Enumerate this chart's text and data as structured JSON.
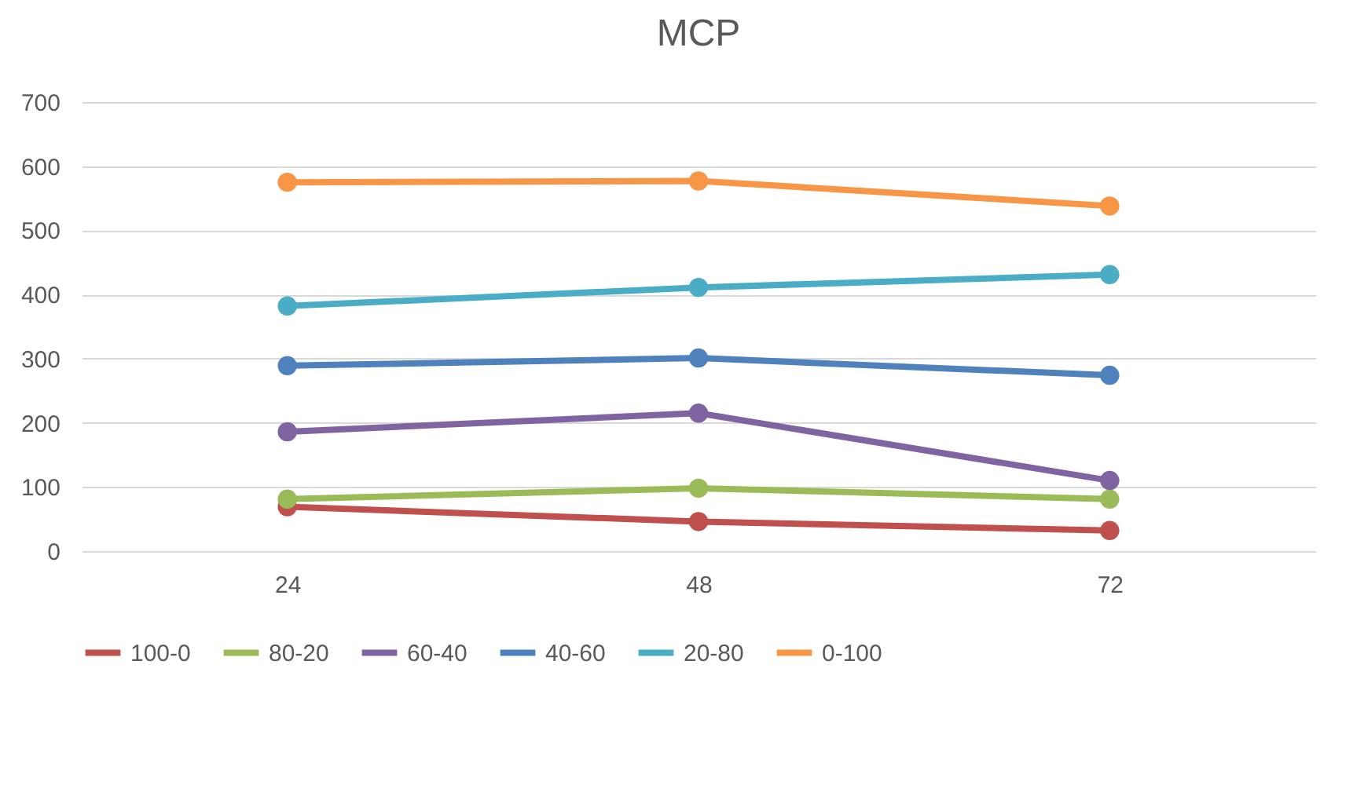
{
  "chart_data": {
    "type": "line",
    "title": "MCP",
    "categories": [
      "24",
      "48",
      "72"
    ],
    "series": [
      {
        "name": "100-0",
        "color": "#c0504d",
        "values": [
          69,
          46,
          32
        ]
      },
      {
        "name": "80-20",
        "color": "#9bbb59",
        "values": [
          81,
          98,
          81
        ]
      },
      {
        "name": "60-40",
        "color": "#8064a2",
        "values": [
          186,
          215,
          110
        ]
      },
      {
        "name": "40-60",
        "color": "#4f81bd",
        "values": [
          289,
          301,
          274
        ]
      },
      {
        "name": "20-80",
        "color": "#4bacc6",
        "values": [
          382,
          411,
          431
        ]
      },
      {
        "name": "0-100",
        "color": "#f79646",
        "values": [
          575,
          577,
          538
        ]
      }
    ],
    "ylim": [
      0,
      700
    ],
    "yticks": [
      0,
      100,
      200,
      300,
      400,
      500,
      600,
      700
    ],
    "grid": "y",
    "legend": "bottom",
    "marker": "circle",
    "line_style": "solid"
  }
}
